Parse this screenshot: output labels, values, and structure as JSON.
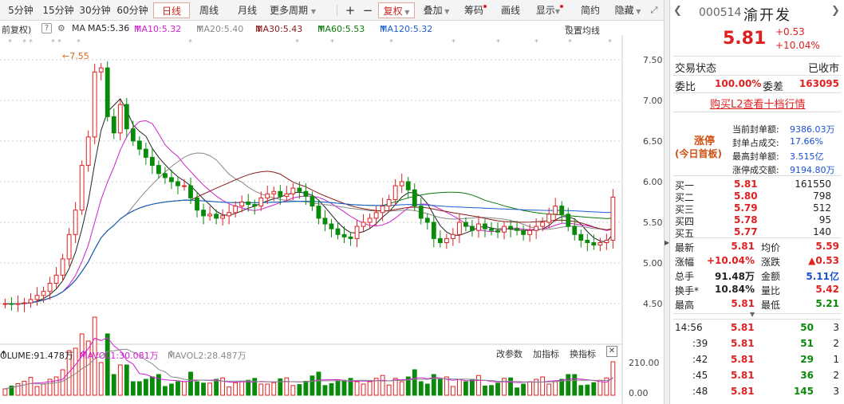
{
  "toolbar": {
    "periods": [
      "5分钟",
      "15分钟",
      "30分钟",
      "60分钟",
      "日线",
      "周线",
      "月线",
      "更多周期"
    ],
    "active_period": "日线",
    "plus": "+",
    "minus": "−",
    "fq": "复权",
    "overlay": "叠加",
    "chouma": "筹码",
    "draw": "画线",
    "show": "显示",
    "simple": "简约",
    "hide": "隐藏"
  },
  "ma_bar": {
    "fq_label": "前复权)",
    "help": "?",
    "ma": "MA",
    "ma5": "MA5:5.36",
    "ma10": "MA10:5.32",
    "ma20": "MA20:5.40",
    "ma30": "MA30:5.43",
    "ma60": "MA60:5.53",
    "ma120": "MA120:5.32",
    "settings": "设置均线"
  },
  "price_axis": [
    "7.50",
    "7.00",
    "6.50",
    "6.00",
    "5.50",
    "5.00",
    "4.50"
  ],
  "high_marker": "←7.55",
  "volume_bar": {
    "volume": "OLUME:91.478万",
    "mavol1": "MAVOL1:30.081万",
    "mavol2": "MAVOL2:28.487万",
    "change_param": "改参数",
    "add_indicator": "加指标",
    "switch_indicator": "换指标",
    "close": "✕"
  },
  "volume_axis": [
    "210.00",
    "0.00"
  ],
  "stock": {
    "code": "000514",
    "name": "渝开发",
    "price": "5.81",
    "change": "+0.53",
    "change_pct": "+10.04%"
  },
  "status": {
    "label": "交易状态",
    "value": "已收市"
  },
  "weibi": {
    "label": "委比",
    "value": "100.00%",
    "diff_label": "委差",
    "diff_value": "163095"
  },
  "l2_link": "购买L2查看十档行情",
  "limit_up": {
    "tag": "涨停",
    "tag_sub": "(今日首板)",
    "rows": [
      {
        "label": "当前封单额:",
        "value": "9386.03万"
      },
      {
        "label": "封单占成交:",
        "value": "17.66%"
      },
      {
        "label": "最高封单额:",
        "value": "3.515亿"
      },
      {
        "label": "涨停成交额:",
        "value": "9194.80万"
      }
    ]
  },
  "bids": [
    {
      "label": "买一",
      "price": "5.81",
      "vol": "161550"
    },
    {
      "label": "买二",
      "price": "5.80",
      "vol": "798"
    },
    {
      "label": "买三",
      "price": "5.79",
      "vol": "512"
    },
    {
      "label": "买四",
      "price": "5.78",
      "vol": "95"
    },
    {
      "label": "买五",
      "price": "5.77",
      "vol": "140"
    }
  ],
  "quote": [
    {
      "l1": "最新",
      "v1": "5.81",
      "l2": "均价",
      "v2": "5.59"
    },
    {
      "l1": "涨幅",
      "v1": "+10.04%",
      "l2": "涨跌",
      "v2": "▲0.53"
    },
    {
      "l1": "总手",
      "v1": "91.48万",
      "l2": "金额",
      "v2": "5.11亿"
    },
    {
      "l1": "换手*",
      "v1": "10.84%",
      "l2": "量比",
      "v2": "5.42"
    },
    {
      "l1": "最高",
      "v1": "5.81",
      "l2": "最低",
      "v2": "5.21"
    }
  ],
  "ticks": [
    {
      "time": "14:56",
      "price": "5.81",
      "vol": "50",
      "n": "3"
    },
    {
      "time": ":39",
      "price": "5.81",
      "vol": "51",
      "n": "2"
    },
    {
      "time": ":42",
      "price": "5.81",
      "vol": "29",
      "n": "1"
    },
    {
      "time": ":45",
      "price": "5.81",
      "vol": "36",
      "n": "2"
    },
    {
      "time": ":48",
      "price": "5.81",
      "vol": "145",
      "n": "3"
    }
  ]
}
